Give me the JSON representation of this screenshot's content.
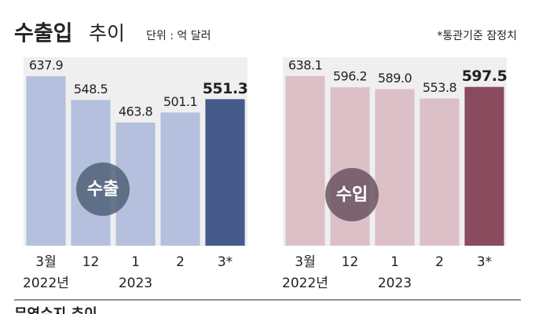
{
  "header": {
    "title": "수출입",
    "title_sub": "추이",
    "unit": "단위 : 억 달러",
    "note": "*통관기준 잠정치",
    "next_title": "무역수지 추이"
  },
  "chart_data": [
    {
      "type": "bar",
      "label": "수출",
      "categories": [
        "3월",
        "12",
        "1",
        "2",
        "3*"
      ],
      "year_labels": [
        "2022년",
        null,
        "2023",
        null,
        null
      ],
      "values": [
        637.9,
        548.5,
        463.8,
        501.1,
        551.3
      ],
      "value_labels": [
        "637.9",
        "548.5",
        "463.8",
        "501.1",
        "551.3"
      ],
      "colors": [
        "#b4c0dd",
        "#b4c0dd",
        "#b4c0dd",
        "#b4c0dd",
        "#45598b"
      ],
      "highlight": 4,
      "ylim": [
        0,
        700
      ]
    },
    {
      "type": "bar",
      "label": "수입",
      "categories": [
        "3월",
        "12",
        "1",
        "2",
        "3*"
      ],
      "year_labels": [
        "2022년",
        null,
        "2023",
        null,
        null
      ],
      "values": [
        638.1,
        596.2,
        589.0,
        553.8,
        597.5
      ],
      "value_labels": [
        "638.1",
        "596.2",
        "589.0",
        "553.8",
        "597.5"
      ],
      "colors": [
        "#dcc0c7",
        "#dcc0c7",
        "#dcc0c7",
        "#dcc0c7",
        "#8a4b5f"
      ],
      "highlight": 4,
      "ylim": [
        0,
        700
      ]
    }
  ]
}
